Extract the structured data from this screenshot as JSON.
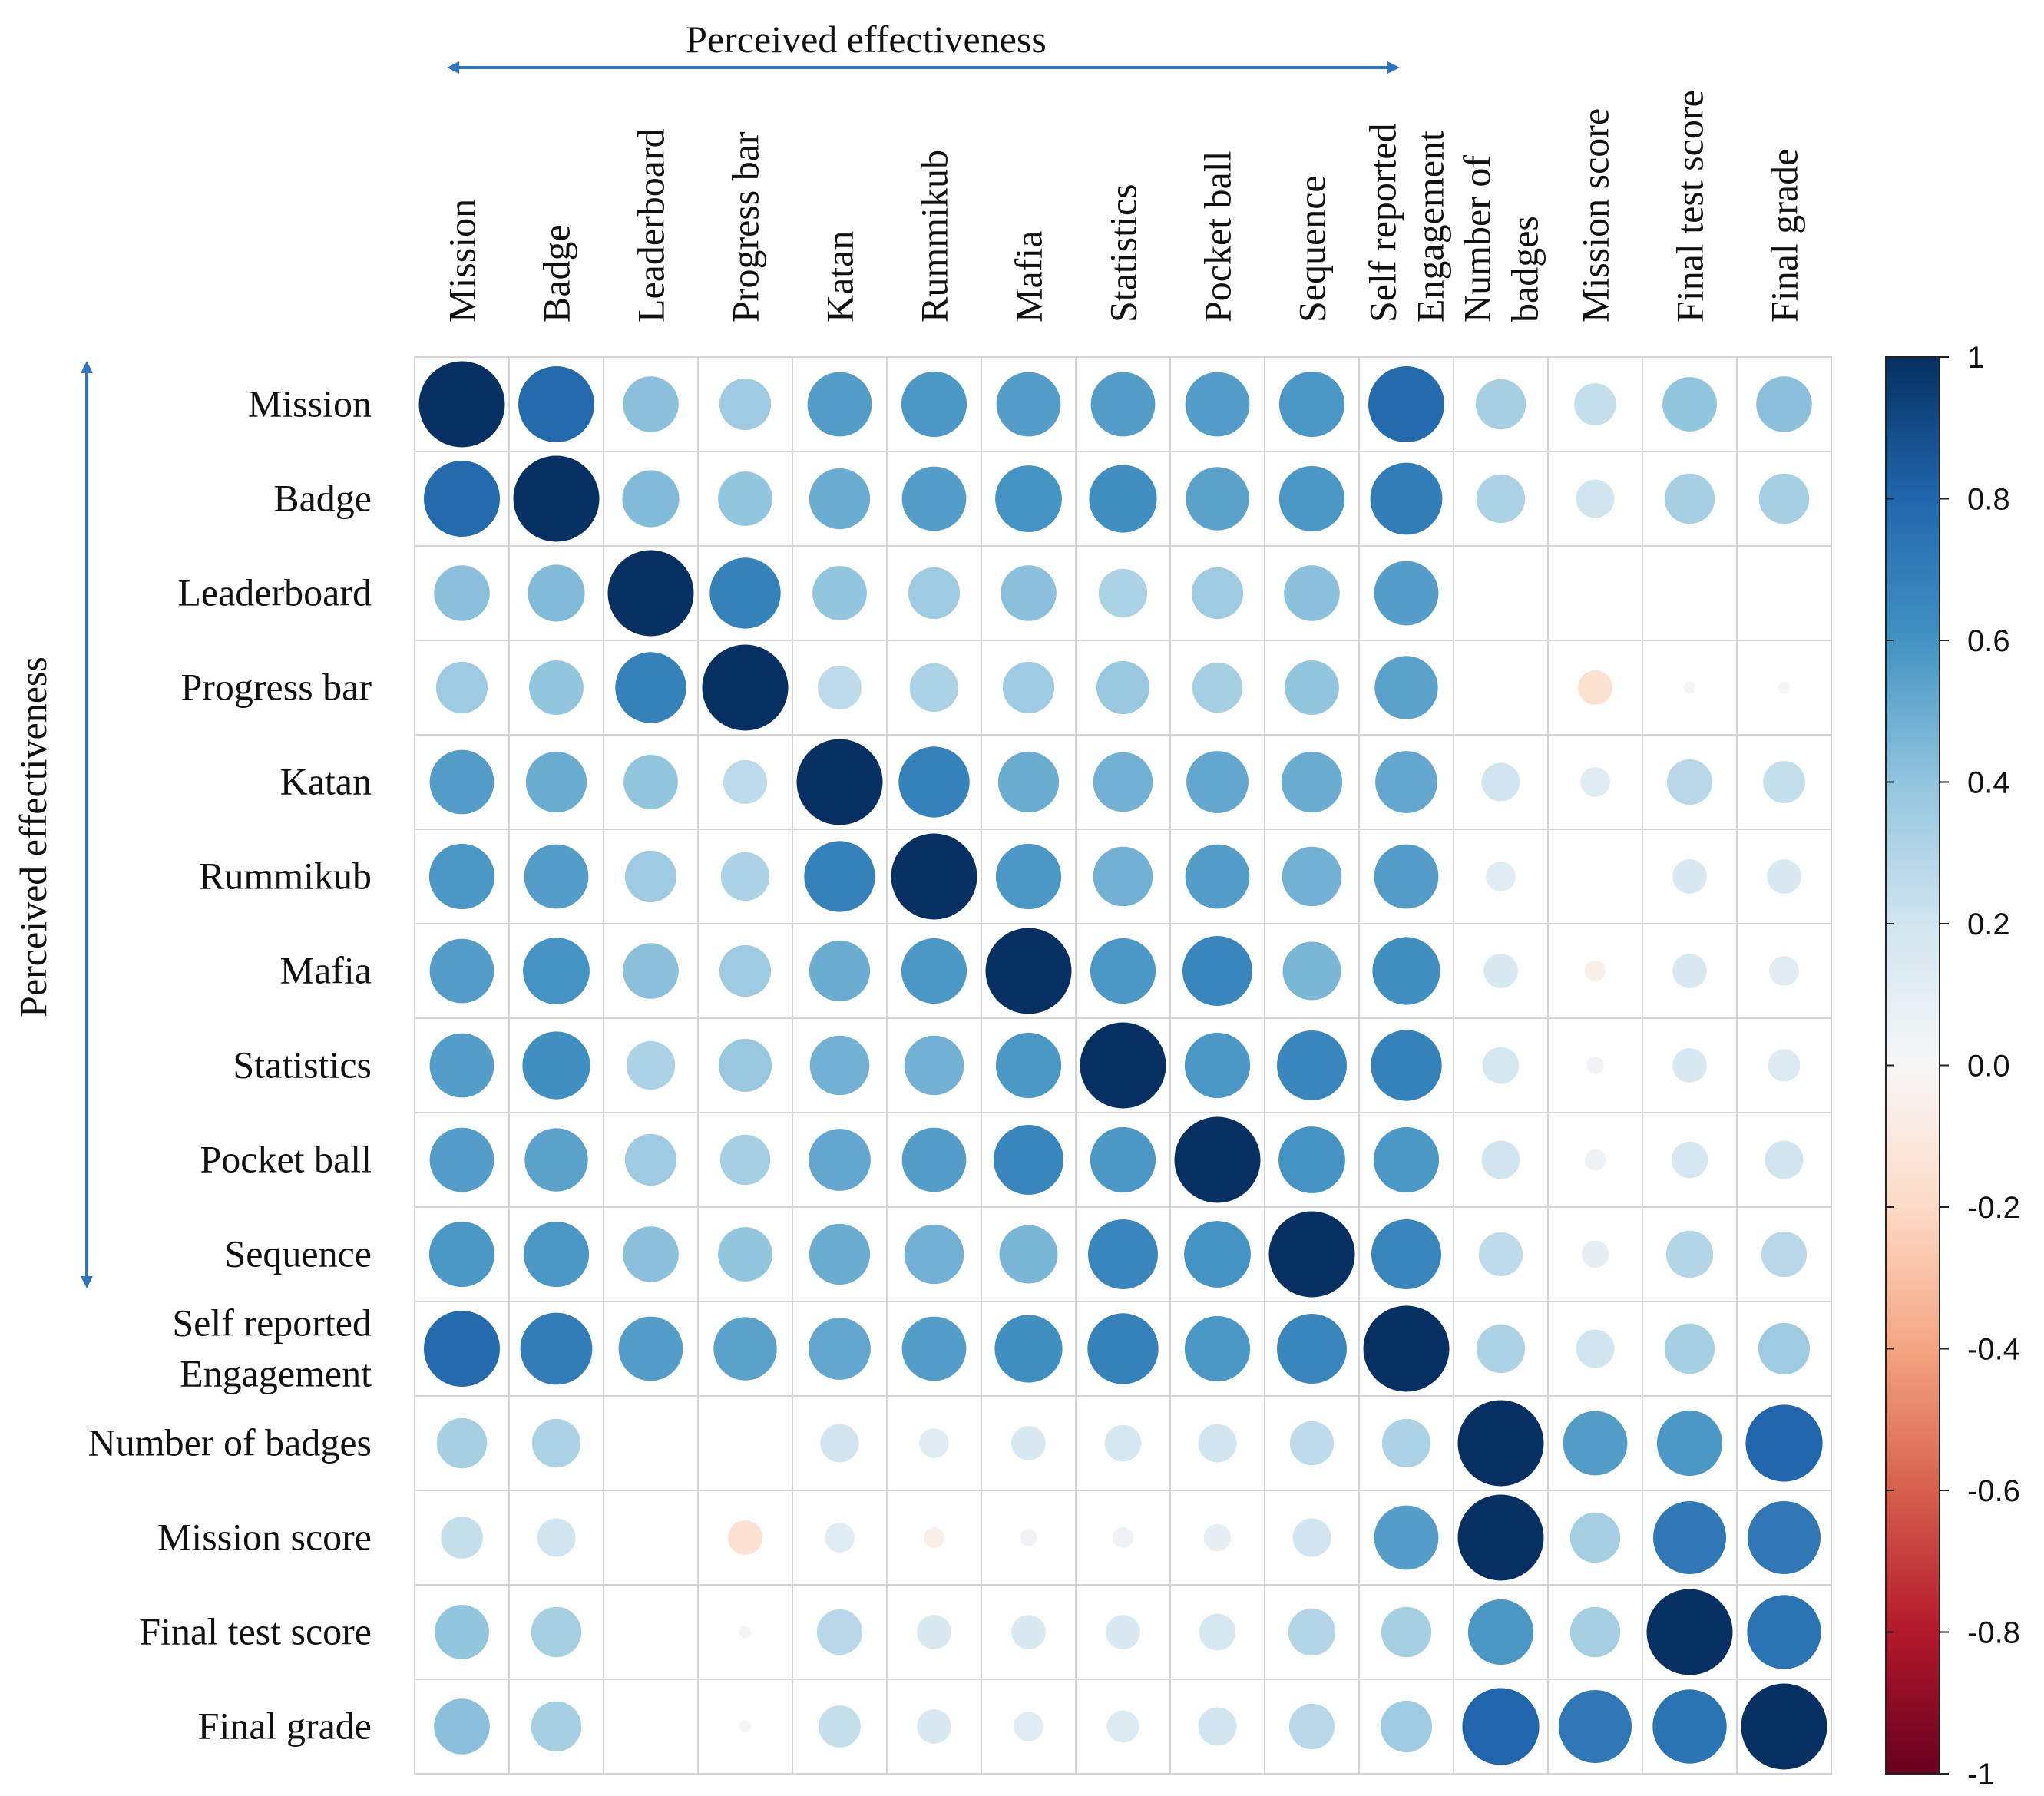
{
  "chart_data": {
    "type": "heatmap",
    "style": "correlation-circles",
    "variables": [
      "Mission",
      "Badge",
      "Leaderboard",
      "Progress bar",
      "Katan",
      "Rummikub",
      "Mafia",
      "Statistics",
      "Pocket ball",
      "Sequence",
      "Self reported Engagement",
      "Number of badges",
      "Mission score",
      "Final test score",
      "Final grade"
    ],
    "row_labels": [
      [
        "Mission"
      ],
      [
        "Badge"
      ],
      [
        "Leaderboard"
      ],
      [
        "Progress bar"
      ],
      [
        "Katan"
      ],
      [
        "Rummikub"
      ],
      [
        "Mafia"
      ],
      [
        "Statistics"
      ],
      [
        "Pocket ball"
      ],
      [
        "Sequence"
      ],
      [
        "Self reported",
        "Engagement"
      ],
      [
        "Number of badges"
      ],
      [
        "Mission score"
      ],
      [
        "Final test score"
      ],
      [
        "Final grade"
      ]
    ],
    "col_labels": [
      [
        "Mission"
      ],
      [
        "Badge"
      ],
      [
        "Leaderboard"
      ],
      [
        "Progress bar"
      ],
      [
        "Katan"
      ],
      [
        "Rummikub"
      ],
      [
        "Mafia"
      ],
      [
        "Statistics"
      ],
      [
        "Pocket ball"
      ],
      [
        "Sequence"
      ],
      [
        "Self reported",
        "Engagement"
      ],
      [
        "Number of",
        "badges"
      ],
      [
        "Mission score"
      ],
      [
        "Final test score"
      ],
      [
        "Final grade"
      ]
    ],
    "matrix": [
      [
        1.0,
        0.78,
        0.42,
        0.36,
        0.56,
        0.58,
        0.56,
        0.56,
        0.56,
        0.58,
        0.78,
        0.34,
        0.24,
        0.4,
        0.42
      ],
      [
        0.78,
        1.0,
        0.44,
        0.4,
        0.5,
        0.56,
        0.6,
        0.62,
        0.54,
        0.58,
        0.7,
        0.32,
        0.2,
        0.34,
        0.34
      ],
      [
        0.42,
        0.44,
        1.0,
        0.68,
        0.4,
        0.36,
        0.42,
        0.32,
        0.36,
        0.42,
        0.56,
        0.0,
        0.0,
        0.0,
        0.0
      ],
      [
        0.36,
        0.4,
        0.68,
        1.0,
        0.26,
        0.32,
        0.36,
        0.38,
        0.34,
        0.4,
        0.54,
        0.0,
        -0.16,
        0.02,
        0.02
      ],
      [
        0.56,
        0.5,
        0.4,
        0.26,
        1.0,
        0.68,
        0.5,
        0.48,
        0.52,
        0.5,
        0.52,
        0.2,
        0.12,
        0.28,
        0.24
      ],
      [
        0.58,
        0.56,
        0.36,
        0.32,
        0.68,
        1.0,
        0.58,
        0.48,
        0.56,
        0.48,
        0.56,
        0.12,
        0.0,
        0.16,
        0.16
      ],
      [
        0.56,
        0.6,
        0.42,
        0.36,
        0.5,
        0.58,
        1.0,
        0.58,
        0.66,
        0.46,
        0.62,
        0.16,
        -0.06,
        0.16,
        0.12
      ],
      [
        0.56,
        0.62,
        0.32,
        0.38,
        0.48,
        0.48,
        0.58,
        1.0,
        0.58,
        0.66,
        0.68,
        0.18,
        0.04,
        0.16,
        0.14
      ],
      [
        0.56,
        0.54,
        0.36,
        0.34,
        0.52,
        0.56,
        0.66,
        0.58,
        1.0,
        0.6,
        0.58,
        0.2,
        0.06,
        0.18,
        0.2
      ],
      [
        0.58,
        0.58,
        0.42,
        0.4,
        0.5,
        0.48,
        0.46,
        0.66,
        0.6,
        1.0,
        0.66,
        0.26,
        0.1,
        0.3,
        0.28
      ],
      [
        0.78,
        0.7,
        0.56,
        0.54,
        0.52,
        0.56,
        0.62,
        0.68,
        0.58,
        0.66,
        1.0,
        0.32,
        0.2,
        0.34,
        0.36
      ],
      [
        0.34,
        0.32,
        0.0,
        0.0,
        0.2,
        0.12,
        0.16,
        0.18,
        0.2,
        0.26,
        0.32,
        1.0,
        0.56,
        0.58,
        0.8
      ],
      [
        0.24,
        0.2,
        0.0,
        -0.16,
        0.12,
        -0.06,
        0.04,
        0.06,
        0.1,
        0.2,
        0.56,
        1.0,
        0.34,
        0.72,
        0.72
      ],
      [
        0.4,
        0.34,
        0.0,
        0.02,
        0.28,
        0.16,
        0.16,
        0.16,
        0.18,
        0.3,
        0.34,
        0.58,
        0.34,
        1.0,
        0.74
      ],
      [
        0.42,
        0.34,
        0.0,
        0.02,
        0.24,
        0.16,
        0.12,
        0.14,
        0.2,
        0.28,
        0.36,
        0.8,
        0.72,
        0.74,
        1.0
      ]
    ],
    "colorbar": {
      "min": -1,
      "max": 1,
      "ticks": [
        "1",
        "0.8",
        "0.6",
        "0.4",
        "0.2",
        "0.0",
        "-0.2",
        "-0.4",
        "-0.6",
        "-0.8",
        "-1"
      ],
      "colors": [
        "#053061",
        "#2166ac",
        "#4393c3",
        "#92c5de",
        "#d1e5f0",
        "#f7f7f7",
        "#fddbc7",
        "#f4a582",
        "#d6604d",
        "#b2182b",
        "#67001f"
      ]
    },
    "annotations": {
      "top": "Perceived  effectiveness",
      "left": "Perceived  effectiveness"
    },
    "arrow_color": "#2e75c0",
    "grid": true
  }
}
